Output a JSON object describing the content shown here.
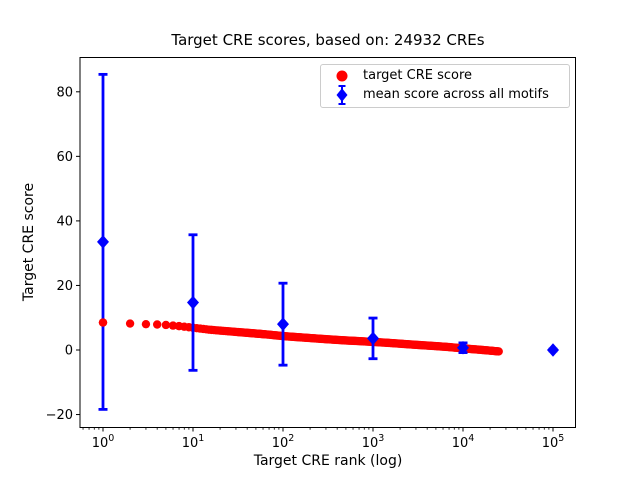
{
  "title": "Target CRE scores, based on: 24932 CREs",
  "axes": {
    "xlabel": "Target CRE rank (log)",
    "ylabel": "Target CRE score",
    "x_scale": "log",
    "x_tick_exponents": [
      0,
      1,
      2,
      3,
      4,
      5
    ],
    "x_tick_base": "10",
    "y_ticks": [
      -20,
      0,
      20,
      40,
      60,
      80
    ],
    "grid": false
  },
  "legend": {
    "position": "upper right",
    "items": [
      {
        "label": "target CRE score",
        "marker": "circle",
        "color": "#ff0000"
      },
      {
        "label": "mean score across all motifs",
        "marker": "diamond-errorbar",
        "color": "#0000ff"
      }
    ]
  },
  "chart_data": {
    "type": "scatter",
    "title": "Target CRE scores, based on: 24932 CREs",
    "xlabel": "Target CRE rank (log)",
    "ylabel": "Target CRE score",
    "x_scale": "log",
    "xlim_log10": [
      -0.26,
      5.26
    ],
    "ylim": [
      -24,
      90.5
    ],
    "n_cres": 24932,
    "series": [
      {
        "name": "target CRE score",
        "marker": "circle",
        "color": "#ff0000",
        "n_points": 24932,
        "curve_rank_score": [
          [
            1,
            8.5
          ],
          [
            2,
            8.2
          ],
          [
            3,
            8.0
          ],
          [
            4,
            7.9
          ],
          [
            5,
            7.75
          ],
          [
            7,
            7.4
          ],
          [
            10,
            6.9
          ],
          [
            15,
            6.3
          ],
          [
            20,
            6.0
          ],
          [
            30,
            5.6
          ],
          [
            50,
            5.1
          ],
          [
            70,
            4.75
          ],
          [
            100,
            4.3
          ],
          [
            150,
            3.95
          ],
          [
            200,
            3.7
          ],
          [
            300,
            3.35
          ],
          [
            500,
            2.95
          ],
          [
            700,
            2.75
          ],
          [
            1000,
            2.5
          ],
          [
            1500,
            2.2
          ],
          [
            2000,
            1.95
          ],
          [
            3000,
            1.6
          ],
          [
            5000,
            1.2
          ],
          [
            7000,
            0.9
          ],
          [
            10000,
            0.5
          ],
          [
            15000,
            0.1
          ],
          [
            20000,
            -0.2
          ],
          [
            24932,
            -0.45
          ]
        ]
      },
      {
        "name": "mean score across all motifs",
        "marker": "diamond",
        "color": "#0000ff",
        "points": [
          {
            "rank": 1,
            "mean": 33.5,
            "err": 51.9
          },
          {
            "rank": 10,
            "mean": 14.7,
            "err": 21.0
          },
          {
            "rank": 100,
            "mean": 8.0,
            "err": 12.7
          },
          {
            "rank": 1000,
            "mean": 3.6,
            "err": 6.3
          },
          {
            "rank": 10000,
            "mean": 0.7,
            "err": 1.5
          },
          {
            "rank": 100000,
            "mean": 0.0,
            "err": 0.25
          }
        ]
      }
    ],
    "legend_position": "upper right",
    "grid": false
  }
}
